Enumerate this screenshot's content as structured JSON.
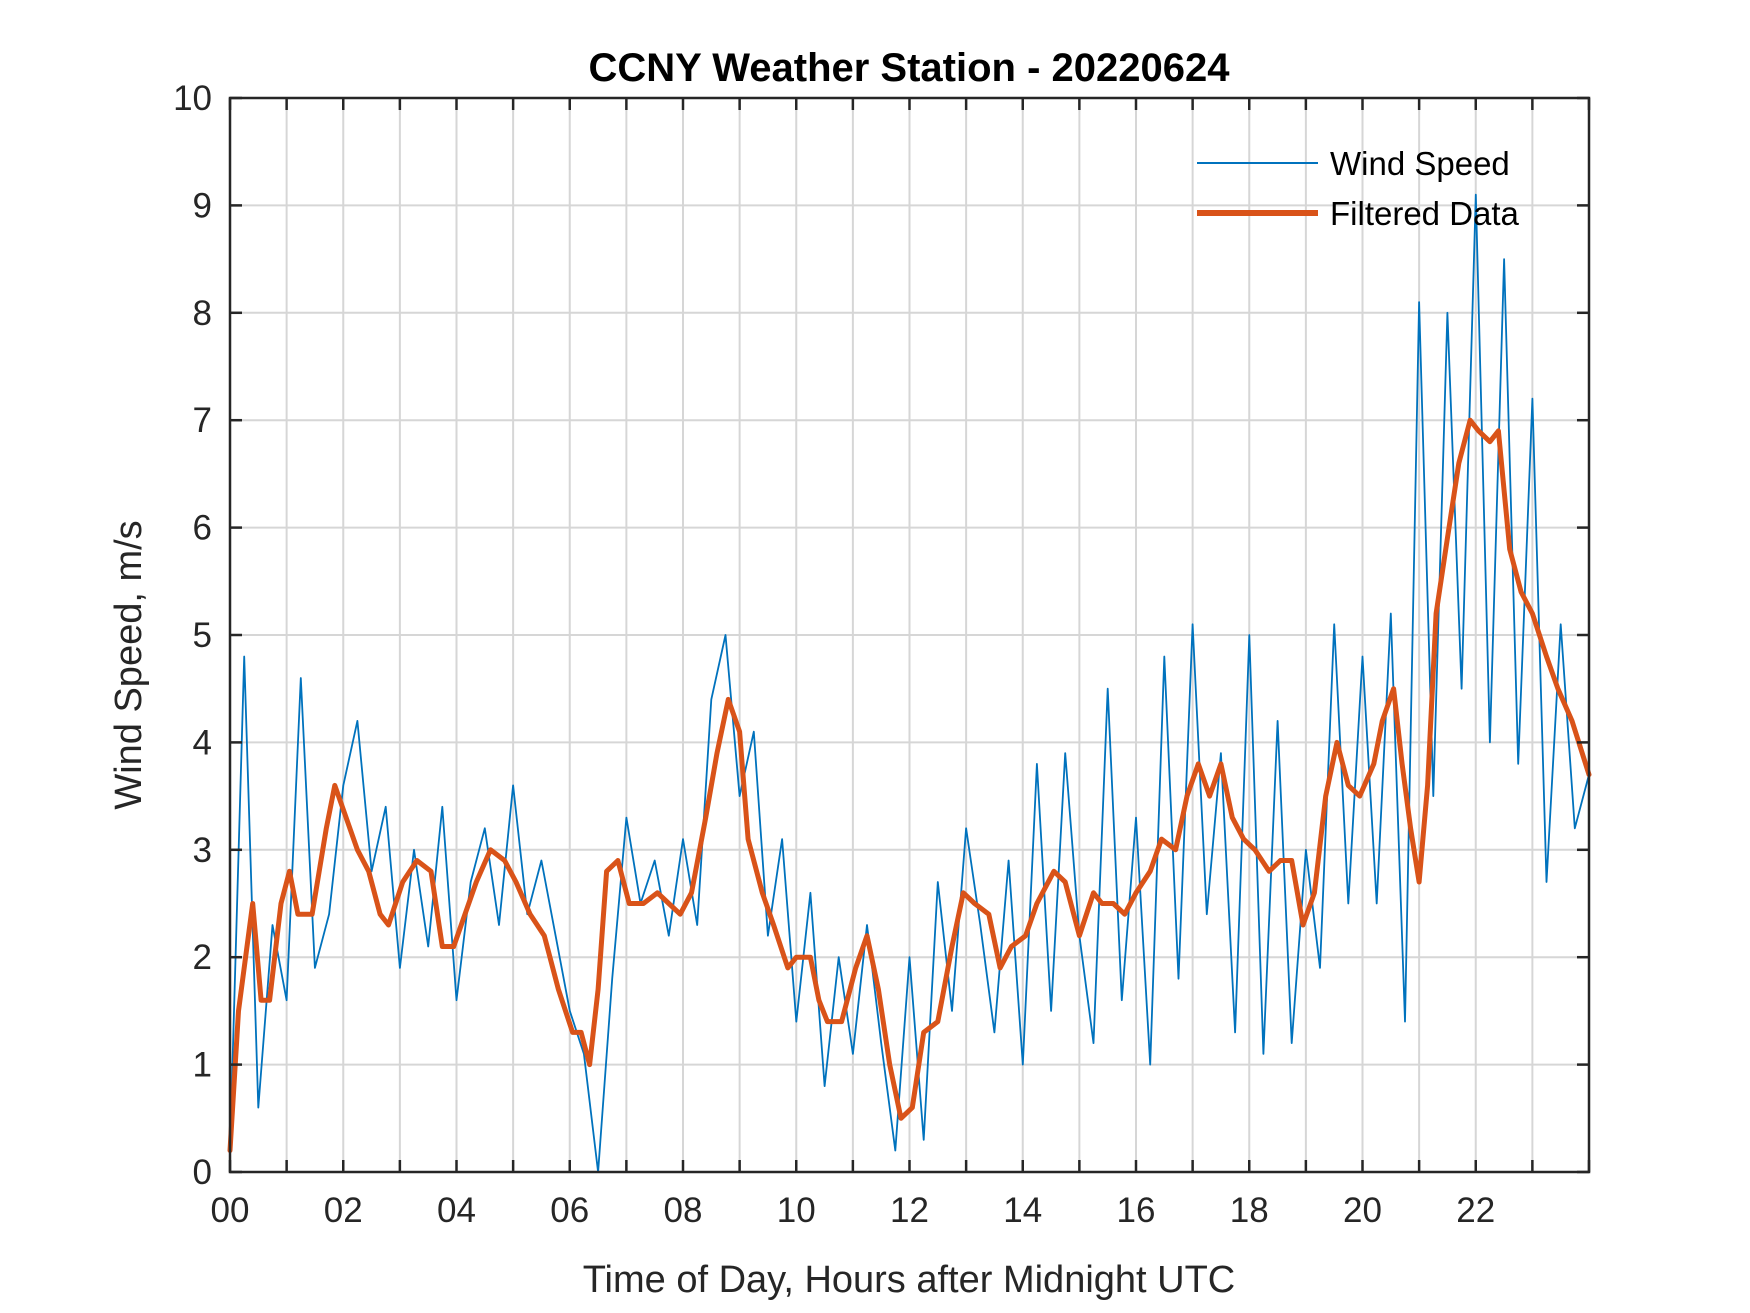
{
  "chart_data": {
    "type": "line",
    "title": "CCNY Weather Station - 20220624",
    "xlabel": "Time of Day, Hours after Midnight UTC",
    "ylabel": "Wind Speed, m/s",
    "xlim": [
      0,
      24
    ],
    "ylim": [
      0,
      10
    ],
    "xticks": [
      0,
      2,
      4,
      6,
      8,
      10,
      12,
      14,
      16,
      18,
      20,
      22
    ],
    "xtick_labels": [
      "00",
      "02",
      "04",
      "06",
      "08",
      "10",
      "12",
      "14",
      "16",
      "18",
      "20",
      "22"
    ],
    "yticks": [
      0,
      1,
      2,
      3,
      4,
      5,
      6,
      7,
      8,
      9,
      10
    ],
    "ytick_labels": [
      "0",
      "1",
      "2",
      "3",
      "4",
      "5",
      "6",
      "7",
      "8",
      "9",
      "10"
    ],
    "grid": true,
    "minor_x_grid_step": 1,
    "legend_placement": "top-right",
    "series": [
      {
        "name": "Wind Speed",
        "color": "#0072BD",
        "x": [
          0.0,
          0.25,
          0.5,
          0.75,
          1.0,
          1.25,
          1.5,
          1.75,
          2.0,
          2.25,
          2.5,
          2.75,
          3.0,
          3.25,
          3.5,
          3.75,
          4.0,
          4.25,
          4.5,
          4.75,
          5.0,
          5.25,
          5.5,
          5.75,
          6.0,
          6.25,
          6.5,
          6.75,
          7.0,
          7.25,
          7.5,
          7.75,
          8.0,
          8.25,
          8.5,
          8.75,
          9.0,
          9.25,
          9.5,
          9.75,
          10.0,
          10.25,
          10.5,
          10.75,
          11.0,
          11.25,
          11.5,
          11.75,
          12.0,
          12.25,
          12.5,
          12.75,
          13.0,
          13.25,
          13.5,
          13.75,
          14.0,
          14.25,
          14.5,
          14.75,
          15.0,
          15.25,
          15.5,
          15.75,
          16.0,
          16.25,
          16.5,
          16.75,
          17.0,
          17.25,
          17.5,
          17.75,
          18.0,
          18.25,
          18.5,
          18.75,
          19.0,
          19.25,
          19.5,
          19.75,
          20.0,
          20.25,
          20.5,
          20.75,
          21.0,
          21.25,
          21.5,
          21.75,
          22.0,
          22.25,
          22.5,
          22.75,
          23.0,
          23.25,
          23.5,
          23.75,
          24.0
        ],
        "values": [
          0.2,
          4.8,
          0.6,
          2.3,
          1.6,
          4.6,
          1.9,
          2.4,
          3.6,
          4.2,
          2.8,
          3.4,
          1.9,
          3.0,
          2.1,
          3.4,
          1.6,
          2.7,
          3.2,
          2.3,
          3.6,
          2.4,
          2.9,
          2.2,
          1.5,
          1.1,
          0.0,
          1.8,
          3.3,
          2.5,
          2.9,
          2.2,
          3.1,
          2.3,
          4.4,
          5.0,
          3.5,
          4.1,
          2.2,
          3.1,
          1.4,
          2.6,
          0.8,
          2.0,
          1.1,
          2.3,
          1.2,
          0.2,
          2.0,
          0.3,
          2.7,
          1.5,
          3.2,
          2.3,
          1.3,
          2.9,
          1.0,
          3.8,
          1.5,
          3.9,
          2.2,
          1.2,
          4.5,
          1.6,
          3.3,
          1.0,
          4.8,
          1.8,
          5.1,
          2.4,
          3.9,
          1.3,
          5.0,
          1.1,
          4.2,
          1.2,
          3.0,
          1.9,
          5.1,
          2.5,
          4.8,
          2.5,
          5.2,
          1.4,
          8.1,
          3.5,
          8.0,
          4.5,
          9.1,
          4.0,
          8.5,
          3.8,
          7.2,
          2.7,
          5.1,
          3.2,
          3.7
        ]
      },
      {
        "name": "Filtered Data",
        "color": "#D95319",
        "x": [
          0.0,
          0.15,
          0.3,
          0.4,
          0.55,
          0.7,
          0.9,
          1.05,
          1.2,
          1.45,
          1.7,
          1.85,
          2.05,
          2.25,
          2.45,
          2.65,
          2.8,
          3.05,
          3.3,
          3.55,
          3.75,
          3.95,
          4.15,
          4.35,
          4.6,
          4.85,
          5.05,
          5.3,
          5.55,
          5.8,
          6.05,
          6.2,
          6.35,
          6.5,
          6.65,
          6.85,
          7.05,
          7.3,
          7.55,
          7.75,
          7.95,
          8.15,
          8.4,
          8.6,
          8.8,
          9.0,
          9.15,
          9.4,
          9.6,
          9.85,
          10.0,
          10.25,
          10.4,
          10.55,
          10.8,
          11.05,
          11.25,
          11.45,
          11.65,
          11.85,
          12.05,
          12.25,
          12.5,
          12.75,
          12.95,
          13.15,
          13.4,
          13.6,
          13.8,
          14.05,
          14.25,
          14.55,
          14.75,
          15.0,
          15.25,
          15.4,
          15.6,
          15.8,
          16.0,
          16.25,
          16.45,
          16.7,
          16.9,
          17.1,
          17.3,
          17.5,
          17.7,
          17.9,
          18.1,
          18.35,
          18.55,
          18.75,
          18.95,
          19.15,
          19.35,
          19.55,
          19.75,
          19.95,
          20.2,
          20.35,
          20.55,
          20.7,
          20.85,
          21.0,
          21.15,
          21.3,
          21.5,
          21.7,
          21.9,
          22.05,
          22.25,
          22.4,
          22.6,
          22.8,
          23.0,
          23.25,
          23.45,
          23.7,
          24.0
        ],
        "values": [
          0.2,
          1.5,
          2.1,
          2.5,
          1.6,
          1.6,
          2.5,
          2.8,
          2.4,
          2.4,
          3.2,
          3.6,
          3.3,
          3.0,
          2.8,
          2.4,
          2.3,
          2.7,
          2.9,
          2.8,
          2.1,
          2.1,
          2.4,
          2.7,
          3.0,
          2.9,
          2.7,
          2.4,
          2.2,
          1.7,
          1.3,
          1.3,
          1.0,
          1.7,
          2.8,
          2.9,
          2.5,
          2.5,
          2.6,
          2.5,
          2.4,
          2.6,
          3.3,
          3.9,
          4.4,
          4.1,
          3.1,
          2.6,
          2.3,
          1.9,
          2.0,
          2.0,
          1.6,
          1.4,
          1.4,
          1.9,
          2.2,
          1.7,
          1.0,
          0.5,
          0.6,
          1.3,
          1.4,
          2.1,
          2.6,
          2.5,
          2.4,
          1.9,
          2.1,
          2.2,
          2.5,
          2.8,
          2.7,
          2.2,
          2.6,
          2.5,
          2.5,
          2.4,
          2.6,
          2.8,
          3.1,
          3.0,
          3.5,
          3.8,
          3.5,
          3.8,
          3.3,
          3.1,
          3.0,
          2.8,
          2.9,
          2.9,
          2.3,
          2.6,
          3.5,
          4.0,
          3.6,
          3.5,
          3.8,
          4.2,
          4.5,
          3.8,
          3.2,
          2.7,
          3.6,
          5.2,
          5.9,
          6.6,
          7.0,
          6.9,
          6.8,
          6.9,
          5.8,
          5.4,
          5.2,
          4.8,
          4.5,
          4.2,
          3.7
        ]
      }
    ]
  }
}
